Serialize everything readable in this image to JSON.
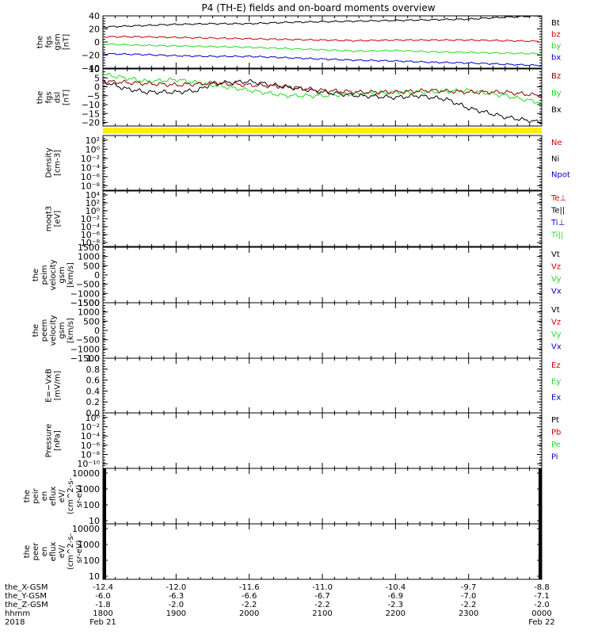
{
  "title": "P4 (TH-E) fields and on-board moments overview",
  "colors": {
    "black": "#000000",
    "red": "#cc0000",
    "green": "#22dd22",
    "blue": "#0000cc",
    "yellow": "#ffee00",
    "dark_red": "#8b0000"
  },
  "chart_data": [
    {
      "type": "line",
      "name": "fgs_gsm",
      "ylabel": [
        "the",
        "fgs",
        "gsm",
        "[nT]"
      ],
      "ylim": [
        -40,
        40
      ],
      "ticks": [
        "40",
        "20",
        "0",
        "−20",
        "−40"
      ],
      "tick_values": [
        40,
        20,
        0,
        -20,
        -40
      ],
      "legend": [
        {
          "label": "Bt",
          "color": "#000000"
        },
        {
          "label": "bz",
          "color": "#cc0000"
        },
        {
          "label": "by",
          "color": "#22dd22"
        },
        {
          "label": "bx",
          "color": "#0000cc"
        }
      ],
      "series": [
        {
          "name": "Bt",
          "color": "#000000",
          "x": [
            0,
            0.5,
            1,
            1.5,
            2,
            2.5,
            3,
            3.5,
            4,
            4.5,
            5,
            5.5,
            6
          ],
          "y": [
            23,
            25,
            27,
            28,
            28,
            30,
            31,
            32,
            33,
            34,
            35,
            38,
            40
          ]
        },
        {
          "name": "bz",
          "color": "#cc0000",
          "x": [
            0,
            0.5,
            1,
            1.5,
            2,
            2.5,
            3,
            3.5,
            4,
            4.5,
            5,
            5.5,
            6
          ],
          "y": [
            8,
            8,
            7,
            6,
            5,
            4,
            3,
            2,
            3,
            3,
            3,
            2,
            1
          ]
        },
        {
          "name": "by",
          "color": "#22dd22",
          "x": [
            0,
            0.5,
            1,
            1.5,
            2,
            2.5,
            3,
            3.5,
            4,
            4.5,
            5,
            5.5,
            6
          ],
          "y": [
            -3,
            -5,
            -6,
            -7,
            -8,
            -10,
            -12,
            -14,
            -13,
            -15,
            -16,
            -17,
            -18
          ]
        },
        {
          "name": "bx",
          "color": "#0000cc",
          "x": [
            0,
            0.5,
            1,
            1.5,
            2,
            2.5,
            3,
            3.5,
            4,
            4.5,
            5,
            5.5,
            6
          ],
          "y": [
            -18,
            -19,
            -21,
            -22,
            -22,
            -24,
            -26,
            -28,
            -29,
            -31,
            -32,
            -34,
            -36
          ]
        }
      ]
    },
    {
      "type": "line",
      "name": "fgs_dsl",
      "ylabel": [
        "the",
        "fgs",
        "dsl",
        "[nT]"
      ],
      "ylim": [
        -22,
        10
      ],
      "ticks": [
        "10",
        "5",
        "0",
        "−5",
        "−10",
        "−15",
        "−20"
      ],
      "tick_values": [
        10,
        5,
        0,
        -5,
        -10,
        -15,
        -20
      ],
      "legend": [
        {
          "label": "Bz",
          "color": "#8b0000"
        },
        {
          "label": "By",
          "color": "#22dd22"
        },
        {
          "label": "Bx",
          "color": "#000000"
        }
      ],
      "series": [
        {
          "name": "By",
          "color": "#22dd22",
          "x": [
            0,
            0.3,
            0.6,
            1,
            1.5,
            2,
            2.5,
            3,
            3.5,
            4,
            4.5,
            5,
            5.5,
            6
          ],
          "y": [
            7,
            5,
            3,
            4,
            1,
            -2,
            -5,
            -5,
            -4,
            -3,
            -3,
            -2,
            -5,
            -9
          ]
        },
        {
          "name": "Bx",
          "color": "#000000",
          "x": [
            0,
            0.3,
            0.6,
            1,
            1.3,
            1.5,
            2,
            2.5,
            3,
            3.5,
            4,
            4.3,
            4.7,
            5,
            5.5,
            6
          ],
          "y": [
            3,
            -1,
            -3,
            -3,
            -2,
            2,
            3,
            0,
            -3,
            -5,
            -6,
            -5,
            -7,
            -12,
            -17,
            -20
          ]
        },
        {
          "name": "Bz",
          "color": "#8b0000",
          "x": [
            0,
            0.5,
            1,
            1.5,
            2,
            2.5,
            3,
            3.5,
            4,
            4.5,
            5,
            5.5,
            6
          ],
          "y": [
            3,
            2,
            1,
            2,
            1,
            0,
            -2,
            -3,
            -3,
            -2,
            -3,
            -3,
            -5
          ]
        }
      ]
    },
    {
      "type": "line",
      "name": "density",
      "ylabel": [
        "Density",
        "[cm-3]"
      ],
      "log": true,
      "ylim": [
        -9,
        3
      ],
      "ticks": [
        "10²",
        "10⁰",
        "10⁻²",
        "10⁻⁴",
        "10⁻⁶",
        "10⁻⁸"
      ],
      "tick_values": [
        2,
        0,
        -2,
        -4,
        -6,
        -8
      ],
      "legend": [
        {
          "label": "Ne",
          "color": "#cc0000"
        },
        {
          "label": "Ni",
          "color": "#000000"
        },
        {
          "label": "Npot",
          "color": "#0000cc"
        }
      ]
    },
    {
      "type": "line",
      "name": "temperature",
      "ylabel": [
        "moqt3",
        "[eV]"
      ],
      "log": true,
      "ylim": [
        -9,
        5
      ],
      "ticks": [
        "10⁴",
        "10²",
        "10⁰",
        "10⁻²",
        "10⁻⁴",
        "10⁻⁶",
        "10⁻⁸"
      ],
      "tick_values": [
        4,
        2,
        0,
        -2,
        -4,
        -6,
        -8
      ],
      "legend": [
        {
          "label": "Te⊥",
          "color": "#cc0000"
        },
        {
          "label": "Te||",
          "color": "#000000"
        },
        {
          "label": "Ti⊥",
          "color": "#0000cc"
        },
        {
          "label": "Ti||",
          "color": "#22dd22"
        }
      ]
    },
    {
      "type": "line",
      "name": "peim_velocity",
      "ylabel": [
        "the",
        "peim",
        "velocity",
        "gsm",
        "[km/s]"
      ],
      "ylim": [
        -1500,
        1500
      ],
      "ticks": [
        "1500",
        "1000",
        "500",
        "0",
        "−500",
        "−1000",
        "−1500"
      ],
      "tick_values": [
        1500,
        1000,
        500,
        0,
        -500,
        -1000,
        -1500
      ],
      "legend": [
        {
          "label": "Vt",
          "color": "#000000"
        },
        {
          "label": "Vz",
          "color": "#cc0000"
        },
        {
          "label": "Vy",
          "color": "#22dd22"
        },
        {
          "label": "Vx",
          "color": "#0000cc"
        }
      ]
    },
    {
      "type": "line",
      "name": "peem_velocity",
      "ylabel": [
        "the",
        "peem",
        "velocity",
        "gsm",
        "[km/s]"
      ],
      "ylim": [
        -1500,
        1500
      ],
      "ticks": [
        "1500",
        "1000",
        "500",
        "0",
        "−500",
        "−1000",
        "−1500"
      ],
      "tick_values": [
        1500,
        1000,
        500,
        0,
        -500,
        -1000,
        -1500
      ],
      "legend": [
        {
          "label": "Vt",
          "color": "#000000"
        },
        {
          "label": "Vz",
          "color": "#cc0000"
        },
        {
          "label": "Vy",
          "color": "#22dd22"
        },
        {
          "label": "Vx",
          "color": "#0000cc"
        }
      ]
    },
    {
      "type": "line",
      "name": "efield",
      "ylabel": [
        "E=−VxB",
        "[mV/m]"
      ],
      "ylim": [
        0,
        1
      ],
      "ticks": [
        "1.0",
        "0.8",
        "0.6",
        "0.4",
        "0.2",
        "0.0"
      ],
      "tick_values": [
        1,
        0.8,
        0.6,
        0.4,
        0.2,
        0
      ],
      "legend": [
        {
          "label": "Ez",
          "color": "#cc0000"
        },
        {
          "label": "Ey",
          "color": "#22dd22"
        },
        {
          "label": "Ex",
          "color": "#0000cc"
        }
      ]
    },
    {
      "type": "line",
      "name": "pressure",
      "ylabel": [
        "Pressure",
        "[nPa]"
      ],
      "log": true,
      "ylim": [
        -11,
        1
      ],
      "ticks": [
        "10⁰",
        "10⁻²",
        "10⁻⁴",
        "10⁻⁶",
        "10⁻⁸",
        "10⁻¹⁰"
      ],
      "tick_values": [
        0,
        -2,
        -4,
        -6,
        -8,
        -10
      ],
      "legend": [
        {
          "label": "Pt",
          "color": "#000000"
        },
        {
          "label": "Pb",
          "color": "#cc0000"
        },
        {
          "label": "Pe",
          "color": "#22dd22"
        },
        {
          "label": "Pi",
          "color": "#0000cc"
        }
      ]
    },
    {
      "type": "heatmap",
      "name": "peir_en_eflux",
      "ylabel": [
        "the",
        "peir",
        "en",
        "eflux",
        "eV/",
        "(cm^2-s-",
        "sr-eV)"
      ],
      "log": true,
      "ylim": [
        0.8,
        4.3
      ],
      "ticks": [
        "10000",
        "1000",
        "100",
        "10"
      ],
      "tick_values": [
        4,
        3,
        2,
        1
      ],
      "legend": []
    },
    {
      "type": "heatmap",
      "name": "peer_en_eflux",
      "ylabel": [
        "the",
        "peer",
        "en",
        "eflux",
        "eV/",
        "(cm^2-s-",
        "sr-eV)"
      ],
      "log": true,
      "ylim": [
        0.8,
        4.3
      ],
      "ticks": [
        "10000",
        "1000",
        "100",
        "10"
      ],
      "tick_values": [
        4,
        3,
        2,
        1
      ],
      "legend": []
    }
  ],
  "xaxis": {
    "row_labels": [
      "the_X-GSM",
      "the_Y-GSM",
      "the_Z-GSM",
      "hhmm",
      "2018"
    ],
    "columns": [
      {
        "x": 0,
        "vals": [
          "-12.4",
          "-6.0",
          "-1.8",
          "1800",
          "Feb 21"
        ]
      },
      {
        "x": 1,
        "vals": [
          "-12.0",
          "-6.3",
          "-2.0",
          "1900",
          ""
        ]
      },
      {
        "x": 2,
        "vals": [
          "-11.6",
          "-6.6",
          "-2.2",
          "2000",
          ""
        ]
      },
      {
        "x": 3,
        "vals": [
          "-11.0",
          "-6.7",
          "-2.2",
          "2100",
          ""
        ]
      },
      {
        "x": 4,
        "vals": [
          "-10.4",
          "-6.9",
          "-2.3",
          "2200",
          ""
        ]
      },
      {
        "x": 5,
        "vals": [
          "-9.7",
          "-7.0",
          "-2.2",
          "2300",
          ""
        ]
      },
      {
        "x": 6,
        "vals": [
          "-8.8",
          "-7.1",
          "-2.0",
          "0000",
          "Feb 22"
        ]
      }
    ],
    "xlim": [
      0,
      6
    ]
  }
}
